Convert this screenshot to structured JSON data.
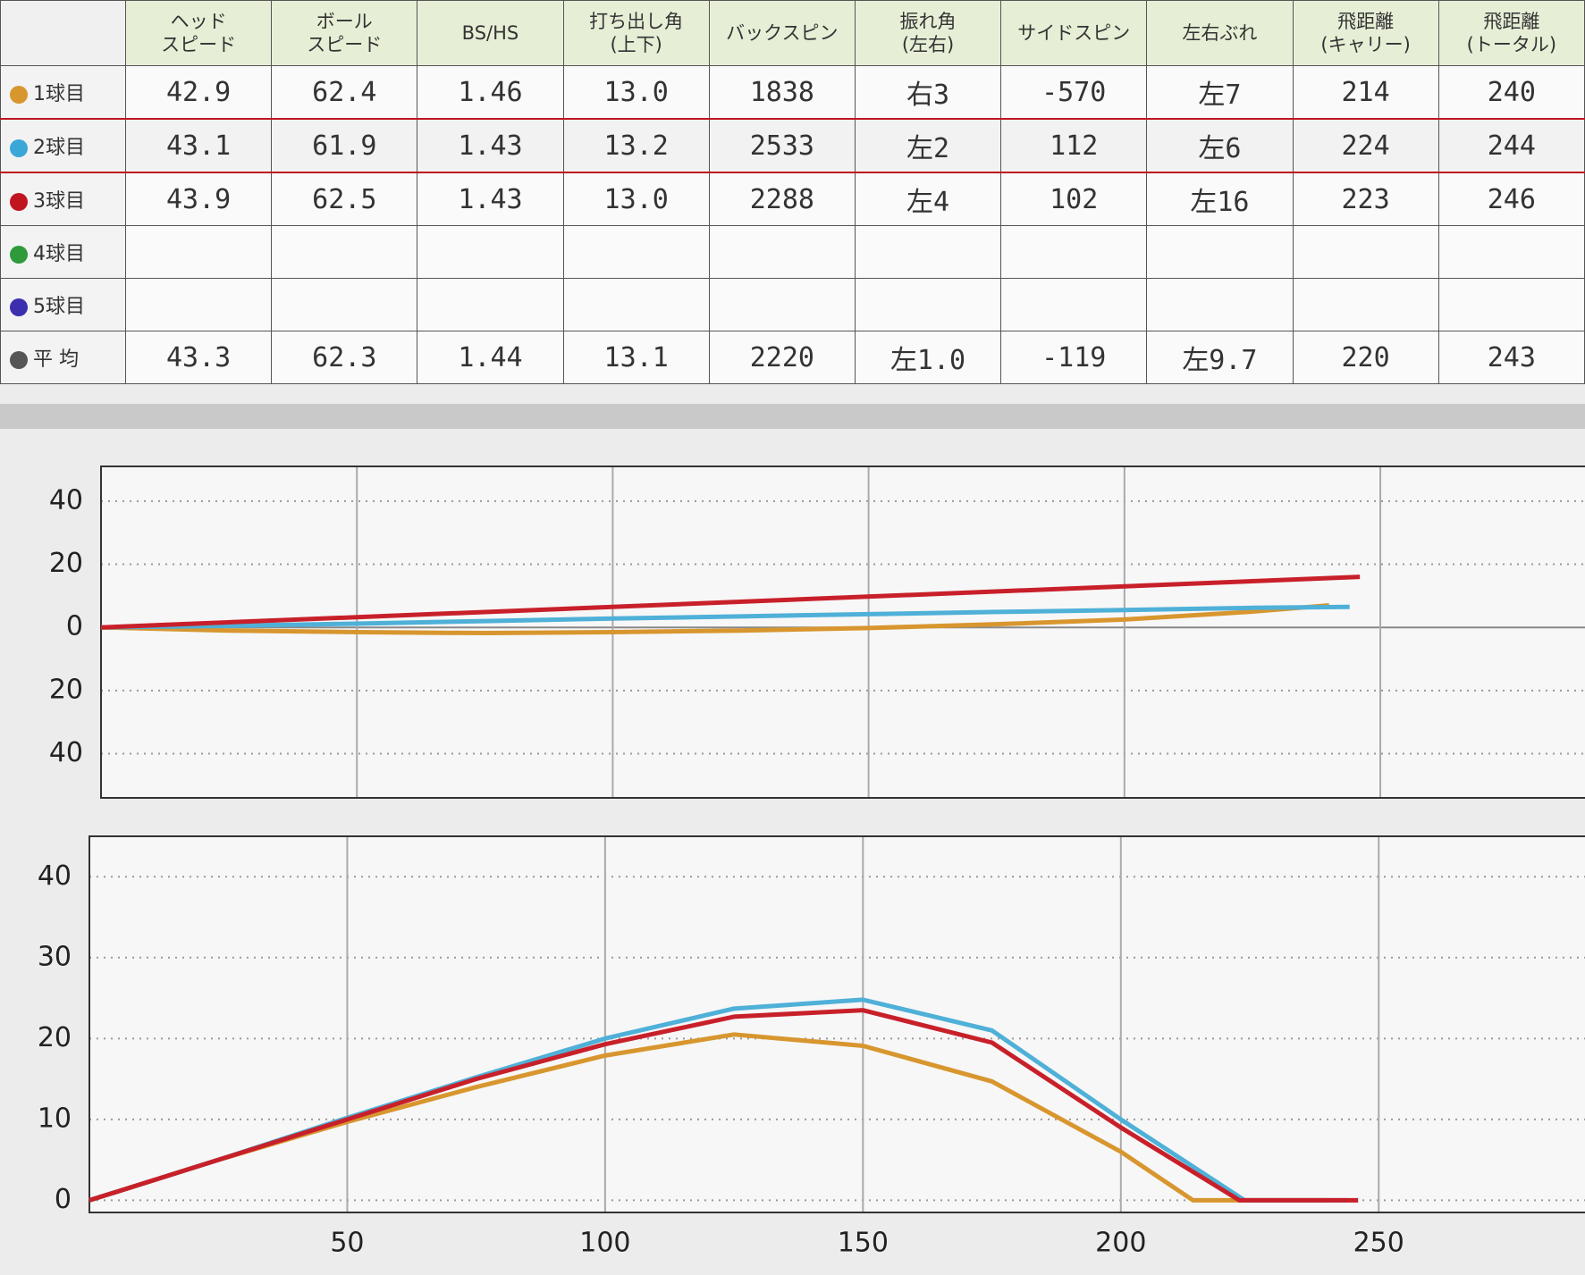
{
  "table": {
    "header": [
      [
        "ヘッド",
        "スピード"
      ],
      [
        "ボール",
        "スピード"
      ],
      [
        "BS/HS"
      ],
      [
        "打ち出し角",
        "(上下)"
      ],
      [
        "バックスピン"
      ],
      [
        "振れ角",
        "(左右)"
      ],
      [
        "サイドスピン"
      ],
      [
        "左右ぶれ"
      ],
      [
        "飛距離",
        "(キャリー)"
      ],
      [
        "飛距離",
        "(トータル)"
      ]
    ],
    "rows": [
      {
        "label": "1球目",
        "color": "#d8962f",
        "cells": [
          "42.9",
          "62.4",
          "1.46",
          "13.0",
          "1838",
          "右3",
          "-570",
          "左7",
          "214",
          "240"
        ]
      },
      {
        "label": "2球目",
        "color": "#3aa7d8",
        "highlight": true,
        "cells": [
          "43.1",
          "61.9",
          "1.43",
          "13.2",
          "2533",
          "左2",
          "112",
          "左6",
          "224",
          "244"
        ]
      },
      {
        "label": "3球目",
        "color": "#c0151f",
        "cells": [
          "43.9",
          "62.5",
          "1.43",
          "13.0",
          "2288",
          "左4",
          "102",
          "左16",
          "223",
          "246"
        ]
      },
      {
        "label": "4球目",
        "color": "#2e9a3a"
      },
      {
        "label": "5球目",
        "color": "#3b2fb0"
      },
      {
        "label": "平 均",
        "color": "#555555",
        "cells": [
          "43.3",
          "62.3",
          "1.44",
          "13.1",
          "2220",
          "左1.0",
          "-119",
          "左9.7",
          "220",
          "243"
        ]
      }
    ]
  },
  "chart_data": [
    {
      "type": "line",
      "xlim": [
        0,
        290
      ],
      "ylim": [
        -54,
        51
      ],
      "yticks": [
        {
          "value": 40,
          "label": "40"
        },
        {
          "value": 20,
          "label": "20"
        },
        0,
        {
          "value": -20,
          "label": "20"
        },
        {
          "value": -40,
          "label": "40"
        }
      ],
      "xticks": [
        50,
        100,
        150,
        200,
        250
      ],
      "xtick_labels": false,
      "grid": true,
      "series": [
        {
          "color": "#d8962f",
          "x": [
            0,
            25,
            50,
            75,
            100,
            125,
            150,
            175,
            200,
            225,
            240
          ],
          "values": [
            0,
            -1,
            -1.5,
            -1.8,
            -1.5,
            -1,
            -0.2,
            1,
            2.5,
            5,
            7
          ]
        },
        {
          "color": "#4fb0d8",
          "x": [
            0,
            25,
            50,
            75,
            100,
            125,
            150,
            175,
            200,
            225,
            244
          ],
          "values": [
            0,
            0.5,
            1.2,
            2,
            2.8,
            3.5,
            4.2,
            4.9,
            5.5,
            6.2,
            6.5
          ]
        },
        {
          "color": "#c8202a",
          "x": [
            0,
            246
          ],
          "values": [
            0,
            16
          ]
        }
      ]
    },
    {
      "type": "line",
      "xlim": [
        0,
        290
      ],
      "ylim": [
        -1.5,
        45
      ],
      "yticks": [
        0,
        10,
        20,
        30,
        40
      ],
      "xticks": [
        50,
        100,
        150,
        200,
        250
      ],
      "xtick_labels": true,
      "grid": true,
      "series": [
        {
          "color": "#d8962f",
          "x": [
            0,
            25,
            50,
            75,
            100,
            125,
            150,
            175,
            200,
            214,
            240
          ],
          "values": [
            0,
            5,
            9.7,
            14,
            17.9,
            20.5,
            19.1,
            14.7,
            6,
            0,
            0
          ]
        },
        {
          "color": "#4fb0d8",
          "x": [
            0,
            25,
            50,
            75,
            100,
            125,
            150,
            175,
            200,
            224,
            244
          ],
          "values": [
            0,
            5,
            10.2,
            15.2,
            20,
            23.7,
            24.8,
            21,
            10,
            0,
            0
          ]
        },
        {
          "color": "#c8202a",
          "x": [
            0,
            25,
            50,
            75,
            100,
            125,
            150,
            175,
            200,
            223,
            246
          ],
          "values": [
            0,
            5,
            10,
            15,
            19.3,
            22.7,
            23.5,
            19.5,
            9,
            0,
            0
          ]
        }
      ]
    }
  ]
}
